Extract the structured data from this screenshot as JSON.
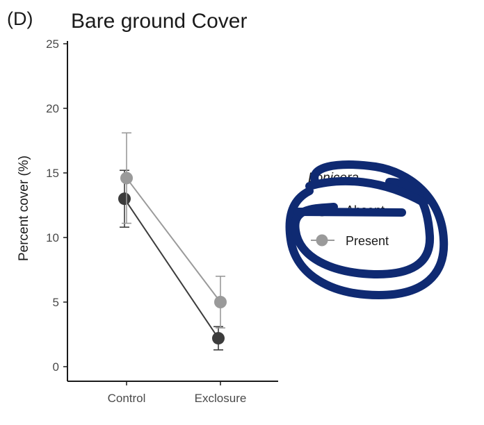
{
  "chart_data": {
    "type": "line",
    "panel_label": "(D)",
    "title": "Bare ground Cover",
    "xlabel": "",
    "ylabel": "Percent cover (%)",
    "categories": [
      "Control",
      "Exclosure"
    ],
    "ylim": [
      0,
      25
    ],
    "yticks": [
      0,
      5,
      10,
      15,
      20,
      25
    ],
    "grid": false,
    "legend": {
      "title": "Lonicera",
      "placement": "right",
      "entries": [
        "Absent",
        "Present"
      ]
    },
    "series": [
      {
        "name": "Absent",
        "color": "#3c3c3c",
        "values": [
          13.0,
          2.2
        ],
        "error_low": [
          10.8,
          1.3
        ],
        "error_high": [
          15.2,
          3.1
        ]
      },
      {
        "name": "Present",
        "color": "#9a9a9a",
        "values": [
          14.6,
          5.0
        ],
        "error_low": [
          11.1,
          3.0
        ],
        "error_high": [
          18.1,
          7.0
        ]
      }
    ],
    "annotation": "blue-hand-drawn-circle-around-legend"
  }
}
